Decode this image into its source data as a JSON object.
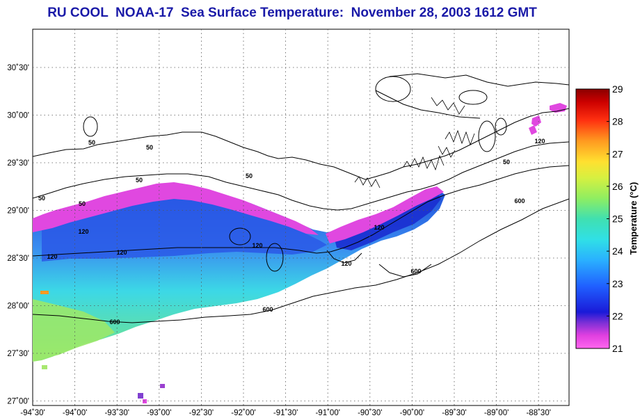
{
  "title": "RU COOL  NOAA-17  Sea Surface Temperature:  November 28, 2003 1612 GMT",
  "x_ticks": [
    "-94˚30'",
    "-94˚00'",
    "-93˚30'",
    "-93˚00'",
    "-92˚30'",
    "-92˚00'",
    "-91˚30'",
    "-91˚00'",
    "-90˚30'",
    "-90˚00'",
    "-89˚30'",
    "-89˚00'",
    "-88˚30'"
  ],
  "y_ticks": [
    "30˚30'",
    "30˚00'",
    "29˚30'",
    "29˚00'",
    "28˚30'",
    "28˚00'",
    "27˚30'",
    "27˚00'"
  ],
  "colorbar": {
    "label": "Temperature (°C)",
    "min": 21,
    "max": 29,
    "ticks": [
      "29",
      "28",
      "27",
      "26",
      "25",
      "24",
      "23",
      "22",
      "21"
    ]
  },
  "contour_labels": [
    "50",
    "50",
    "50",
    "50",
    "50",
    "50",
    "120",
    "120",
    "120",
    "120",
    "120",
    "120",
    "600",
    "600",
    "600",
    "600",
    "50",
    "120"
  ]
}
